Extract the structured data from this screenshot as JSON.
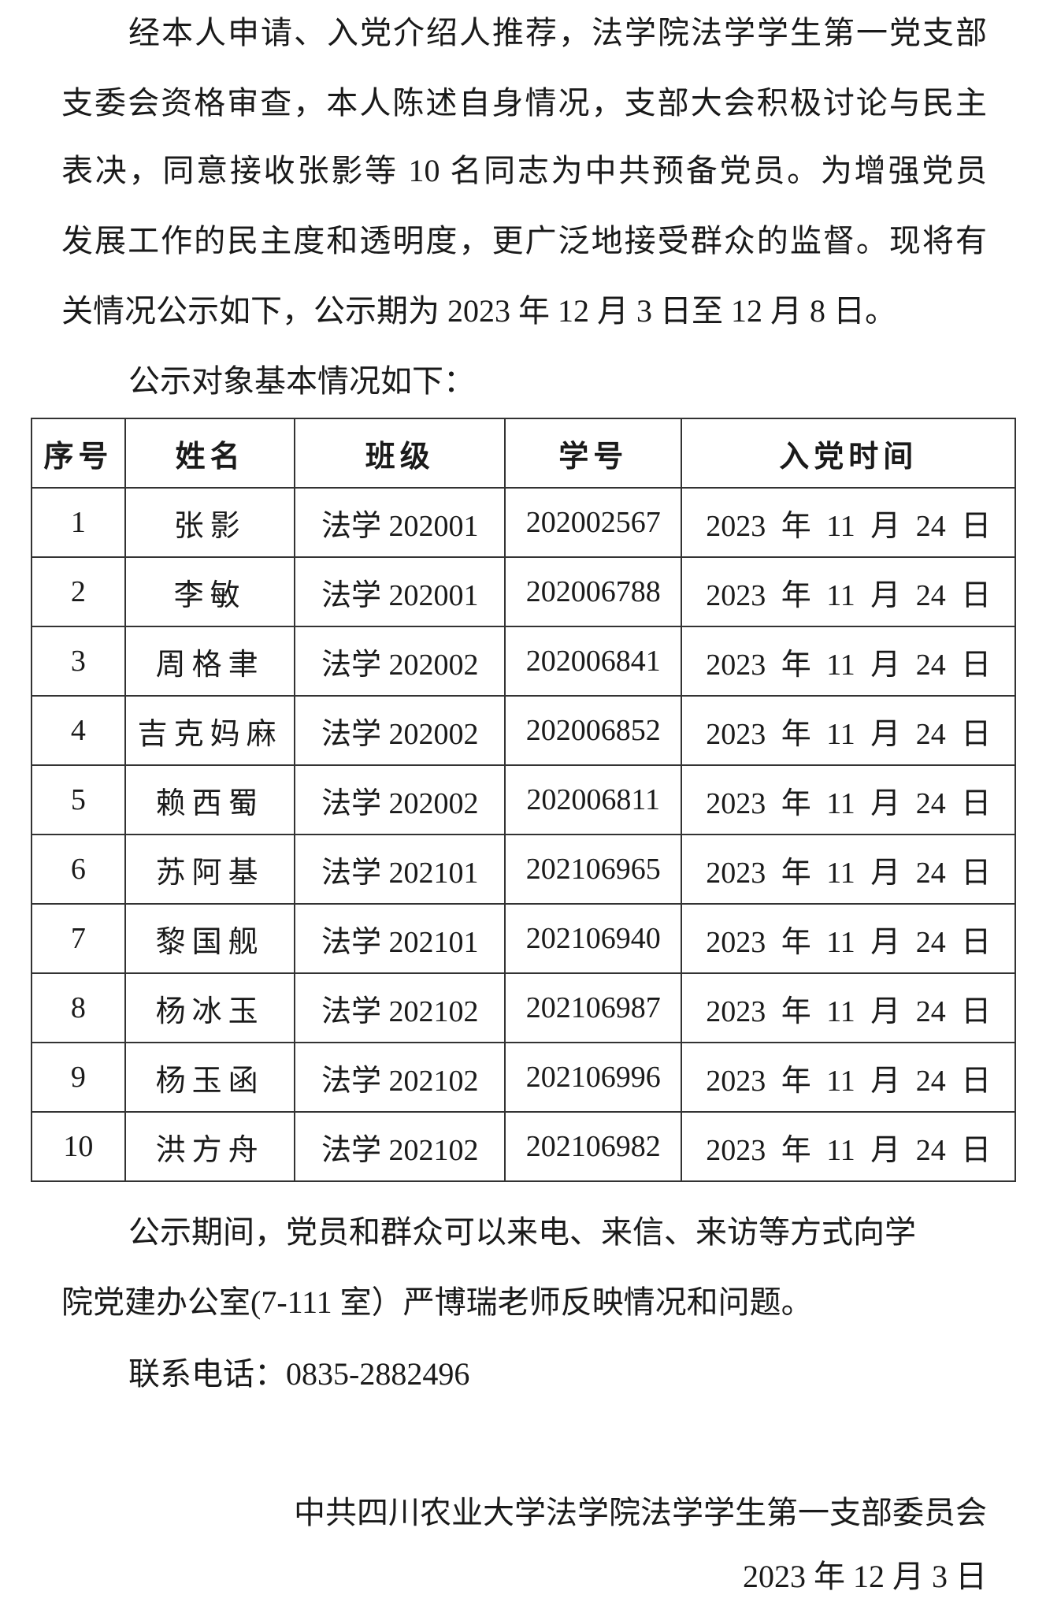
{
  "intro_lines": [
    "经本人申请、入党介绍人推荐，法学院法学学生第一党支部",
    "支委会资格审查，本人陈述自身情况，支部大会积极讨论与民主",
    "表决，同意接收张影等 10 名同志为中共预备党员。为增强党员",
    "发展工作的民主度和透明度，更广泛地接受群众的监督。现将有",
    "关情况公示如下，公示期为 2023 年 12 月 3 日至 12 月 8 日。"
  ],
  "table_intro": "公示对象基本情况如下：",
  "table": {
    "headers": [
      "序号",
      "姓名",
      "班级",
      "学号",
      "入党时间"
    ],
    "rows": [
      [
        "1",
        "张影",
        "法学 202001",
        "202002567",
        "2023 年 11 月 24 日"
      ],
      [
        "2",
        "李敏",
        "法学 202001",
        "202006788",
        "2023 年 11 月 24 日"
      ],
      [
        "3",
        "周格聿",
        "法学 202002",
        "202006841",
        "2023 年 11 月 24 日"
      ],
      [
        "4",
        "吉克妈麻",
        "法学 202002",
        "202006852",
        "2023 年 11 月 24 日"
      ],
      [
        "5",
        "赖西蜀",
        "法学 202002",
        "202006811",
        "2023 年 11 月 24 日"
      ],
      [
        "6",
        "苏阿基",
        "法学 202101",
        "202106965",
        "2023 年 11 月 24 日"
      ],
      [
        "7",
        "黎国舰",
        "法学 202101",
        "202106940",
        "2023 年 11 月 24 日"
      ],
      [
        "8",
        "杨冰玉",
        "法学 202102",
        "202106987",
        "2023 年 11 月 24 日"
      ],
      [
        "9",
        "杨玉函",
        "法学 202102",
        "202106996",
        "2023 年 11 月 24 日"
      ],
      [
        "10",
        "洪方舟",
        "法学 202102",
        "202106982",
        "2023 年 11 月 24 日"
      ]
    ]
  },
  "closing_lines": [
    "公示期间，党员和群众可以来电、来信、来访等方式向学",
    "院党建办公室(7-111 室）严博瑞老师反映情况和问题。"
  ],
  "contact": "联系电话：0835-2882496",
  "signature": "中共四川农业大学法学院法学学生第一支部委员会",
  "date": "2023 年 12 月 3 日"
}
